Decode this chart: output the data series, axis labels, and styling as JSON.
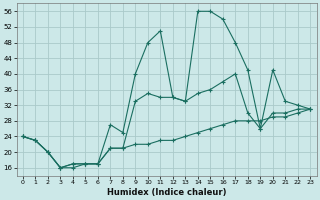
{
  "xlabel": "Humidex (Indice chaleur)",
  "bg_color": "#cce8e8",
  "grid_color": "#aacaca",
  "line_color": "#1a6e60",
  "xlim": [
    -0.5,
    23.5
  ],
  "ylim": [
    14,
    58
  ],
  "yticks": [
    16,
    20,
    24,
    28,
    32,
    36,
    40,
    44,
    48,
    52,
    56
  ],
  "xticks": [
    0,
    1,
    2,
    3,
    4,
    5,
    6,
    7,
    8,
    9,
    10,
    11,
    12,
    13,
    14,
    15,
    16,
    17,
    18,
    19,
    20,
    21,
    22,
    23
  ],
  "series": [
    {
      "x": [
        0,
        1,
        2,
        3,
        4,
        5,
        6,
        7,
        8,
        9,
        10,
        11,
        12,
        13,
        14,
        15,
        16,
        17,
        18,
        19,
        20,
        21,
        22,
        23
      ],
      "y": [
        24,
        23,
        20,
        16,
        16,
        17,
        17,
        27,
        25,
        40,
        48,
        51,
        34,
        33,
        56,
        56,
        54,
        48,
        41,
        26,
        41,
        33,
        32,
        31
      ]
    },
    {
      "x": [
        0,
        1,
        2,
        3,
        4,
        5,
        6,
        7,
        8,
        9,
        10,
        11,
        12,
        13,
        14,
        15,
        16,
        17,
        18,
        19,
        20,
        21,
        22,
        23
      ],
      "y": [
        24,
        23,
        20,
        16,
        17,
        17,
        17,
        21,
        21,
        33,
        35,
        34,
        34,
        33,
        35,
        36,
        38,
        40,
        30,
        26,
        30,
        30,
        31,
        31
      ]
    },
    {
      "x": [
        0,
        1,
        2,
        3,
        4,
        5,
        6,
        7,
        8,
        9,
        10,
        11,
        12,
        13,
        14,
        15,
        16,
        17,
        18,
        19,
        20,
        21,
        22,
        23
      ],
      "y": [
        24,
        23,
        20,
        16,
        17,
        17,
        17,
        21,
        21,
        22,
        22,
        23,
        23,
        24,
        25,
        26,
        27,
        28,
        28,
        28,
        29,
        29,
        30,
        31
      ]
    }
  ]
}
